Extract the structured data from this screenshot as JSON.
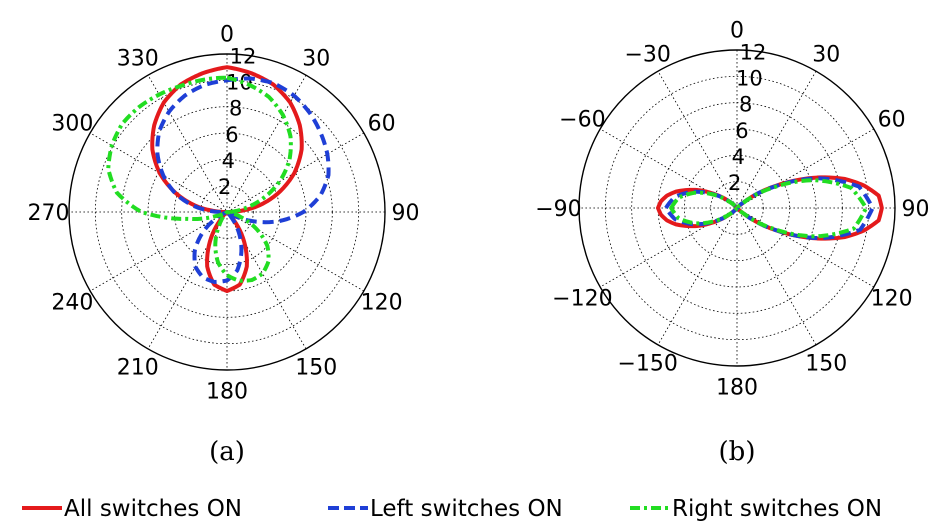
{
  "chart_data": [
    {
      "type": "polar",
      "caption": "(a)",
      "radial_ticks": [
        "2",
        "4",
        "6",
        "8",
        "10",
        "12"
      ],
      "rlim": [
        0,
        12
      ],
      "angular_ticks": [
        "0",
        "30",
        "60",
        "90",
        "120",
        "150",
        "180",
        "210",
        "240",
        "270",
        "300",
        "330"
      ],
      "grid": true,
      "series": [
        {
          "name": "All switches ON",
          "color": "#e41a1c",
          "style": "solid",
          "theta": [
            0,
            10,
            20,
            30,
            40,
            50,
            60,
            70,
            80,
            90,
            100,
            110,
            120,
            130,
            140,
            150,
            160,
            170,
            180,
            190,
            200,
            210,
            220,
            230,
            240,
            250,
            260,
            270,
            280,
            290,
            300,
            310,
            320,
            330,
            340,
            350,
            360
          ],
          "r": [
            11,
            10.7,
            10.3,
            9.6,
            8.6,
            7.4,
            5.9,
            4.1,
            2.2,
            0,
            0,
            0,
            0,
            0,
            0.8,
            2.6,
            4.4,
            5.6,
            6.0,
            5.6,
            4.4,
            2.6,
            0.8,
            0,
            0,
            0,
            0,
            0,
            2.2,
            4.1,
            5.9,
            7.4,
            8.6,
            9.6,
            10.3,
            10.7,
            11
          ]
        },
        {
          "name": "Left switches ON",
          "color": "#1f3fd6",
          "style": "dashed",
          "theta": [
            0,
            10,
            20,
            30,
            40,
            50,
            60,
            70,
            80,
            90,
            100,
            110,
            120,
            130,
            140,
            150,
            160,
            170,
            180,
            190,
            200,
            210,
            220,
            230,
            240,
            250,
            260,
            270,
            280,
            290,
            300,
            310,
            320,
            330,
            340,
            350,
            360
          ],
          "r": [
            10.0,
            10.3,
            10.4,
            10.2,
            9.8,
            9.3,
            8.8,
            8.2,
            7.2,
            5.8,
            4.0,
            2.0,
            0.3,
            0,
            0.4,
            1.8,
            3.2,
            4.5,
            5.2,
            5.4,
            5.3,
            4.8,
            3.8,
            2.4,
            0.9,
            0,
            0,
            0.6,
            2.5,
            4.2,
            5.6,
            6.9,
            8.0,
            8.8,
            9.4,
            9.8,
            10.0
          ]
        },
        {
          "name": "Right switches ON",
          "color": "#22dd22",
          "style": "dashdot",
          "theta": [
            0,
            10,
            20,
            30,
            40,
            50,
            60,
            70,
            80,
            90,
            100,
            110,
            120,
            130,
            140,
            150,
            160,
            170,
            180,
            190,
            200,
            210,
            220,
            230,
            240,
            250,
            260,
            270,
            280,
            290,
            300,
            310,
            320,
            330,
            340,
            350,
            360
          ],
          "r": [
            10.2,
            9.8,
            9.3,
            8.5,
            7.5,
            6.2,
            4.6,
            2.8,
            1.1,
            0,
            0.2,
            1.1,
            2.6,
            4.0,
            4.9,
            5.4,
            5.5,
            5.3,
            4.8,
            3.9,
            2.6,
            1.2,
            0.3,
            0,
            0,
            0.9,
            3.0,
            6.5,
            8.5,
            9.6,
            10.1,
            10.4,
            10.4,
            10.3,
            10.2,
            10.2,
            10.2
          ]
        }
      ]
    },
    {
      "type": "polar",
      "caption": "(b)",
      "radial_ticks": [
        "2",
        "4",
        "6",
        "8",
        "10",
        "12"
      ],
      "rlim": [
        0,
        12
      ],
      "angular_ticks": [
        "0",
        "30",
        "60",
        "90",
        "120",
        "150",
        "180",
        "−150",
        "−120",
        "−90",
        "−60",
        "−30"
      ],
      "grid": true,
      "series": [
        {
          "name": "All switches ON",
          "color": "#e41a1c",
          "style": "solid",
          "theta": [
            -90,
            -85,
            -80,
            -75,
            -70,
            -65,
            -60,
            -55,
            -50,
            -45,
            -40,
            -35,
            -30,
            -25,
            -20,
            -15,
            -10,
            -5,
            0,
            5,
            10,
            15,
            20,
            25,
            30,
            35,
            40,
            45,
            50,
            55,
            60,
            65,
            70,
            75,
            80,
            85,
            90,
            95,
            100,
            105,
            110,
            115,
            120,
            125,
            130,
            135,
            140,
            145,
            150,
            155,
            160,
            165,
            170,
            175,
            180,
            185,
            190,
            195,
            200,
            205,
            210,
            215,
            220,
            225,
            230,
            235,
            240,
            245,
            250,
            255,
            260,
            265,
            270
          ],
          "r": [
            6.0,
            5.8,
            5.4,
            4.8,
            4.0,
            3.2,
            2.3,
            1.5,
            0.8,
            0.3,
            0,
            0,
            0,
            0,
            0,
            0,
            0,
            0,
            0,
            0,
            0,
            0,
            0,
            0,
            0,
            0,
            0,
            0,
            0.7,
            1.9,
            3.3,
            5.0,
            6.8,
            8.5,
            9.8,
            10.8,
            11.0,
            10.8,
            9.8,
            8.5,
            6.8,
            5.0,
            3.3,
            1.9,
            0.7,
            0,
            0,
            0,
            0,
            0,
            0,
            0,
            0,
            0,
            0,
            0,
            0,
            0,
            0,
            0,
            0,
            0,
            0,
            0.3,
            0.8,
            1.5,
            2.3,
            3.2,
            4.0,
            4.8,
            5.4,
            5.8,
            6.0
          ]
        },
        {
          "name": "Left switches ON",
          "color": "#1f3fd6",
          "style": "dashed",
          "theta": [
            -90,
            -80,
            -70,
            -60,
            -50,
            -40,
            40,
            50,
            60,
            70,
            80,
            90,
            100,
            110,
            120,
            130,
            140,
            220,
            230,
            240,
            250,
            260,
            270
          ],
          "r": [
            5.4,
            4.8,
            3.6,
            2.1,
            0.8,
            0,
            0,
            0.7,
            3.2,
            6.6,
            9.4,
            10.3,
            9.5,
            6.7,
            3.3,
            0.7,
            0,
            0,
            0.8,
            2.1,
            3.6,
            4.8,
            5.4
          ]
        },
        {
          "name": "Right switches ON",
          "color": "#22dd22",
          "style": "dashdot",
          "theta": [
            -90,
            -80,
            -70,
            -60,
            -50,
            -40,
            40,
            50,
            60,
            70,
            80,
            90,
            100,
            110,
            120,
            130,
            140,
            220,
            230,
            240,
            250,
            260,
            270
          ],
          "r": [
            5.0,
            4.5,
            3.4,
            2.0,
            0.7,
            0,
            0,
            0.6,
            3.0,
            6.2,
            8.8,
            9.8,
            9.0,
            6.3,
            3.1,
            0.6,
            0,
            0,
            0.7,
            2.0,
            3.4,
            4.5,
            5.0
          ]
        }
      ]
    }
  ],
  "legend": [
    {
      "label": "All switches ON",
      "color": "#e41a1c",
      "style": "solid"
    },
    {
      "label": "Left switches ON",
      "color": "#1f3fd6",
      "style": "dashed"
    },
    {
      "label": "Right switches ON",
      "color": "#22dd22",
      "style": "dashdot"
    }
  ]
}
